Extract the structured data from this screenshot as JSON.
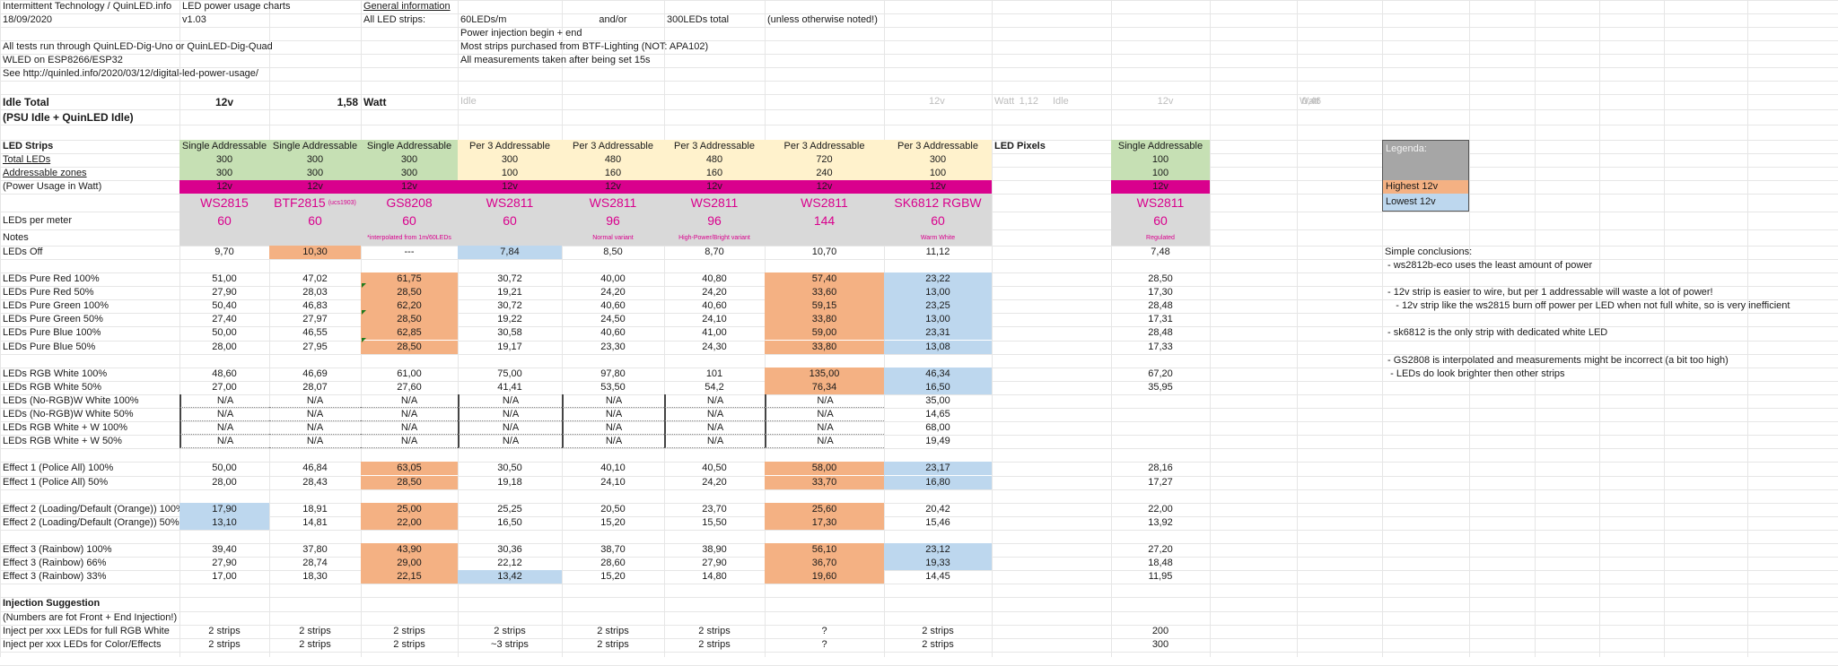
{
  "header": {
    "org": "Intermittent Technology / QuinLED.info",
    "date": "18/09/2020",
    "sheet_title": "LED power usage charts",
    "version": "v1.03",
    "notes": [
      "All tests run through QuinLED-Dig-Uno or QuinLED-Dig-Quad",
      "WLED on ESP8266/ESP32",
      "See http://quinled.info/2020/03/12/digital-led-power-usage/"
    ]
  },
  "general_info": {
    "title": "General information",
    "all_led_strips_label": "All LED strips:",
    "leds_per_m": "60LEDs/m",
    "and_or": "and/or",
    "total": "300LEDs total",
    "unless": "(unless otherwise noted!)",
    "lines": [
      "Power injection begin + end",
      "Most strips purchased from BTF-Lighting (NOT: APA102)",
      "All measurements taken after being set 15s"
    ]
  },
  "idle": {
    "label": "Idle Total",
    "sublabel": "(PSU Idle + QuinLED Idle)",
    "voltage": "12v",
    "value": "1,58",
    "unit": "Watt",
    "secondary": [
      {
        "label": "Idle",
        "voltage": "12v",
        "value": "1,12",
        "unit": "Watt"
      },
      {
        "label": "Idle",
        "voltage": "12v",
        "value": "0,46",
        "unit": "Watt"
      }
    ]
  },
  "table": {
    "row_labels": {
      "strips": "LED Strips",
      "total": "Total LEDs",
      "zones": "Addressable zones",
      "power": "(Power Usage in Watt)",
      "per_meter": "LEDs per meter",
      "notes": "Notes"
    },
    "columns": [
      {
        "type": "Single Addressable",
        "total": "300",
        "zones": "300",
        "voltage": "12v",
        "chip": "WS2815",
        "chip_sub": "",
        "per_meter": "60",
        "note": ""
      },
      {
        "type": "Single Addressable",
        "total": "300",
        "zones": "300",
        "voltage": "12v",
        "chip": "BTF2815",
        "chip_sub": "(ucs1903)",
        "per_meter": "60",
        "note": ""
      },
      {
        "type": "Single Addressable",
        "total": "300",
        "zones": "300",
        "voltage": "12v",
        "chip": "GS8208",
        "chip_sub": "",
        "per_meter": "60",
        "note": "*interpolated from 1m/60LEDs"
      },
      {
        "type": "Per 3 Addressable",
        "total": "300",
        "zones": "100",
        "voltage": "12v",
        "chip": "WS2811",
        "chip_sub": "",
        "per_meter": "60",
        "note": ""
      },
      {
        "type": "Per 3 Addressable",
        "total": "480",
        "zones": "160",
        "voltage": "12v",
        "chip": "WS2811",
        "chip_sub": "",
        "per_meter": "96",
        "note": "Normal variant"
      },
      {
        "type": "Per 3 Addressable",
        "total": "480",
        "zones": "160",
        "voltage": "12v",
        "chip": "WS2811",
        "chip_sub": "",
        "per_meter": "96",
        "note": "High-Power/Bright variant"
      },
      {
        "type": "Per 3 Addressable",
        "total": "720",
        "zones": "240",
        "voltage": "12v",
        "chip": "WS2811",
        "chip_sub": "",
        "per_meter": "144",
        "note": ""
      },
      {
        "type": "Per 3 Addressable",
        "total": "300",
        "zones": "100",
        "voltage": "12v",
        "chip": "SK6812 RGBW",
        "chip_sub": "",
        "per_meter": "60",
        "note": "Warm White"
      }
    ],
    "pixels": {
      "label": "LED Pixels",
      "type": "Single Addressable",
      "total": "100",
      "zones": "100",
      "voltage": "12v",
      "chip": "WS2811",
      "per_meter": "60",
      "note": "Regulated"
    },
    "rows": [
      {
        "label": "LEDs Off",
        "values": [
          "9,70",
          "10,30",
          "---",
          "7,84",
          "8,50",
          "8,70",
          "10,70",
          "11,12"
        ],
        "pixel": "7,48",
        "hl": [
          "",
          "hi",
          "",
          "lo",
          "",
          "",
          "",
          ""
        ]
      },
      {
        "gap": true
      },
      {
        "label": "LEDs Pure Red 100%",
        "values": [
          "51,00",
          "47,02",
          "61,75",
          "30,72",
          "40,00",
          "40,80",
          "57,40",
          "23,22"
        ],
        "pixel": "28,50",
        "hl": [
          "",
          "",
          "hi",
          "",
          "",
          "",
          "hi",
          "lo"
        ]
      },
      {
        "label": "LEDs Pure Red 50%",
        "values": [
          "27,90",
          "28,03",
          "28,50",
          "19,21",
          "24,20",
          "24,20",
          "33,60",
          "13,00"
        ],
        "pixel": "17,30",
        "hl": [
          "",
          "",
          "hi",
          "",
          "",
          "",
          "hi",
          "lo"
        ]
      },
      {
        "label": "LEDs Pure Green 100%",
        "values": [
          "50,40",
          "46,83",
          "62,20",
          "30,72",
          "40,60",
          "40,60",
          "59,15",
          "23,25"
        ],
        "pixel": "28,48",
        "hl": [
          "",
          "",
          "hi",
          "",
          "",
          "",
          "hi",
          "lo"
        ]
      },
      {
        "label": "LEDs Pure Green 50%",
        "values": [
          "27,40",
          "27,97",
          "28,50",
          "19,22",
          "24,50",
          "24,10",
          "33,80",
          "13,00"
        ],
        "pixel": "17,31",
        "hl": [
          "",
          "",
          "hi",
          "",
          "",
          "",
          "hi",
          "lo"
        ]
      },
      {
        "label": "LEDs Pure Blue 100%",
        "values": [
          "50,00",
          "46,55",
          "62,85",
          "30,58",
          "40,60",
          "41,00",
          "59,00",
          "23,31"
        ],
        "pixel": "28,48",
        "hl": [
          "",
          "",
          "hi",
          "",
          "",
          "",
          "hi",
          "lo"
        ]
      },
      {
        "label": "LEDs Pure Blue 50%",
        "values": [
          "28,00",
          "27,95",
          "28,50",
          "19,17",
          "23,30",
          "24,30",
          "33,80",
          "13,08"
        ],
        "pixel": "17,33",
        "hl": [
          "",
          "",
          "hi",
          "",
          "",
          "",
          "hi",
          "lo"
        ]
      },
      {
        "gap": true
      },
      {
        "label": "LEDs RGB White 100%",
        "values": [
          "48,60",
          "46,69",
          "61,00",
          "75,00",
          "97,80",
          "101",
          "135,00",
          "46,34"
        ],
        "pixel": "67,20",
        "hl": [
          "",
          "",
          "",
          "",
          "",
          "",
          "hi",
          "lo"
        ]
      },
      {
        "label": "LEDs RGB White 50%",
        "values": [
          "27,00",
          "28,07",
          "27,60",
          "41,41",
          "53,50",
          "54,2",
          "76,34",
          "16,50"
        ],
        "pixel": "35,95",
        "hl": [
          "",
          "",
          "",
          "",
          "",
          "",
          "hi",
          "lo"
        ]
      },
      {
        "label": "LEDs (No-RGB)W White 100%",
        "values": [
          "N/A",
          "N/A",
          "N/A",
          "N/A",
          "N/A",
          "N/A",
          "N/A",
          "35,00"
        ],
        "pixel": "",
        "hl": [
          "",
          "",
          "",
          "",
          "",
          "",
          "",
          ""
        ],
        "dotted": true
      },
      {
        "label": "LEDs (No-RGB)W White 50%",
        "values": [
          "N/A",
          "N/A",
          "N/A",
          "N/A",
          "N/A",
          "N/A",
          "N/A",
          "14,65"
        ],
        "pixel": "",
        "hl": [
          "",
          "",
          "",
          "",
          "",
          "",
          "",
          ""
        ],
        "dotted": true
      },
      {
        "label": "LEDs RGB White + W 100%",
        "values": [
          "N/A",
          "N/A",
          "N/A",
          "N/A",
          "N/A",
          "N/A",
          "N/A",
          "68,00"
        ],
        "pixel": "",
        "hl": [
          "",
          "",
          "",
          "",
          "",
          "",
          "",
          ""
        ],
        "dotted": true
      },
      {
        "label": "LEDs RGB White + W 50%",
        "values": [
          "N/A",
          "N/A",
          "N/A",
          "N/A",
          "N/A",
          "N/A",
          "N/A",
          "19,49"
        ],
        "pixel": "",
        "hl": [
          "",
          "",
          "",
          "",
          "",
          "",
          "",
          ""
        ],
        "dotted": true
      },
      {
        "gap": true
      },
      {
        "label": "Effect 1 (Police All) 100%",
        "values": [
          "50,00",
          "46,84",
          "63,05",
          "30,50",
          "40,10",
          "40,50",
          "58,00",
          "23,17"
        ],
        "pixel": "28,16",
        "hl": [
          "",
          "",
          "hi",
          "",
          "",
          "",
          "hi",
          "lo"
        ]
      },
      {
        "label": "Effect 1 (Police All) 50%",
        "values": [
          "28,00",
          "28,43",
          "28,50",
          "19,18",
          "24,10",
          "24,20",
          "33,70",
          "16,80"
        ],
        "pixel": "17,27",
        "hl": [
          "",
          "",
          "hi",
          "",
          "",
          "",
          "hi",
          "lo"
        ]
      },
      {
        "gap": true
      },
      {
        "label": "Effect 2 (Loading/Default (Orange)) 100%",
        "values": [
          "17,90",
          "18,91",
          "25,00",
          "25,25",
          "20,50",
          "23,70",
          "25,60",
          "20,42"
        ],
        "pixel": "22,00",
        "hl": [
          "lo",
          "",
          "hi",
          "",
          "",
          "",
          "hi",
          ""
        ]
      },
      {
        "label": "Effect 2 (Loading/Default (Orange)) 50%",
        "values": [
          "13,10",
          "14,81",
          "22,00",
          "16,50",
          "15,20",
          "15,50",
          "17,30",
          "15,46"
        ],
        "pixel": "13,92",
        "hl": [
          "lo",
          "",
          "hi",
          "",
          "",
          "",
          "hi",
          ""
        ]
      },
      {
        "gap": true
      },
      {
        "label": "Effect 3 (Rainbow) 100%",
        "values": [
          "39,40",
          "37,80",
          "43,90",
          "30,36",
          "38,70",
          "38,90",
          "56,10",
          "23,12"
        ],
        "pixel": "27,20",
        "hl": [
          "",
          "",
          "hi",
          "",
          "",
          "",
          "hi",
          "lo"
        ]
      },
      {
        "label": "Effect 3 (Rainbow) 66%",
        "values": [
          "27,90",
          "28,74",
          "29,00",
          "22,12",
          "28,60",
          "27,90",
          "36,70",
          "19,33"
        ],
        "pixel": "18,48",
        "hl": [
          "",
          "",
          "hi",
          "",
          "",
          "",
          "hi",
          "lo"
        ]
      },
      {
        "label": "Effect 3 (Rainbow) 33%",
        "values": [
          "17,00",
          "18,30",
          "22,15",
          "13,42",
          "15,20",
          "14,80",
          "19,60",
          "14,45"
        ],
        "pixel": "11,95",
        "hl": [
          "",
          "",
          "hi",
          "lo",
          "",
          "",
          "hi",
          ""
        ]
      },
      {
        "gap": true
      },
      {
        "label": "Injection Suggestion",
        "bold": true,
        "values": [
          "",
          "",
          "",
          "",
          "",
          "",
          "",
          ""
        ],
        "pixel": ""
      },
      {
        "label": "(Numbers are fot Front + End Injection!)",
        "values": [
          "",
          "",
          "",
          "",
          "",
          "",
          "",
          ""
        ],
        "pixel": ""
      },
      {
        "label": "Inject per xxx LEDs for full RGB White",
        "values": [
          "2 strips",
          "2 strips",
          "2 strips",
          "2 strips",
          "2 strips",
          "2 strips",
          "?",
          "2 strips"
        ],
        "pixel": "200"
      },
      {
        "label": "Inject per xxx LEDs for Color/Effects",
        "values": [
          "2 strips",
          "2 strips",
          "2 strips",
          "~3 strips",
          "2 strips",
          "2 strips",
          "?",
          "2 strips"
        ],
        "pixel": "300"
      }
    ]
  },
  "legend": {
    "title": "Legenda:",
    "highest": "Highest 12v",
    "lowest": "Lowest 12v",
    "colors": {
      "highest": "#f4b183",
      "lowest": "#bdd7ee",
      "header": "#a6a6a6"
    }
  },
  "conclusions": {
    "title": "Simple conclusions:",
    "lines": [
      " - ws2812b-eco uses the least amount of power",
      "",
      " - 12v strip is easier to wire, but per 1 addressable will waste a lot of power!",
      "    - 12v strip like the ws2815 burn off power per LED when not full white, so is very inefficient",
      "",
      " - sk6812 is the only strip with dedicated white LED",
      "",
      " - GS2808 is interpolated and measurements might be incorrect (a bit too high)",
      "  - LEDs do look brighter then other strips"
    ]
  },
  "colors": {
    "single_addressable": "#c6e0b4",
    "per3_addressable": "#fff2cc",
    "voltage_band": "#d9008d",
    "chip_band": "#d9d9d9",
    "chip_text": "#d9008d"
  }
}
